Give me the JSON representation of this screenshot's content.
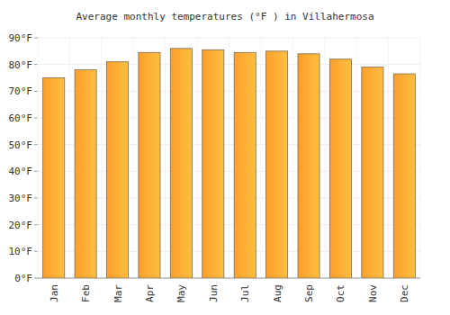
{
  "chart_data": {
    "type": "bar",
    "title": "Average monthly temperatures (°F ) in Villahermosa",
    "categories": [
      "Jan",
      "Feb",
      "Mar",
      "Apr",
      "May",
      "Jun",
      "Jul",
      "Aug",
      "Sep",
      "Oct",
      "Nov",
      "Dec"
    ],
    "values": [
      75,
      78,
      81,
      84.5,
      86,
      85.5,
      84.5,
      85,
      84,
      82,
      79,
      76.5
    ],
    "color": "#fd9f2a",
    "ylim": [
      0,
      90
    ],
    "yticks": [
      {
        "value": 0,
        "label": "0°F"
      },
      {
        "value": 10,
        "label": "10°F"
      },
      {
        "value": 20,
        "label": "20°F"
      },
      {
        "value": 30,
        "label": "30°F"
      },
      {
        "value": 40,
        "label": "40°F"
      },
      {
        "value": 50,
        "label": "50°F"
      },
      {
        "value": 60,
        "label": "60°F"
      },
      {
        "value": 70,
        "label": "70°F"
      },
      {
        "value": 80,
        "label": "80°F"
      },
      {
        "value": 90,
        "label": "90°F"
      }
    ],
    "grid": true
  }
}
